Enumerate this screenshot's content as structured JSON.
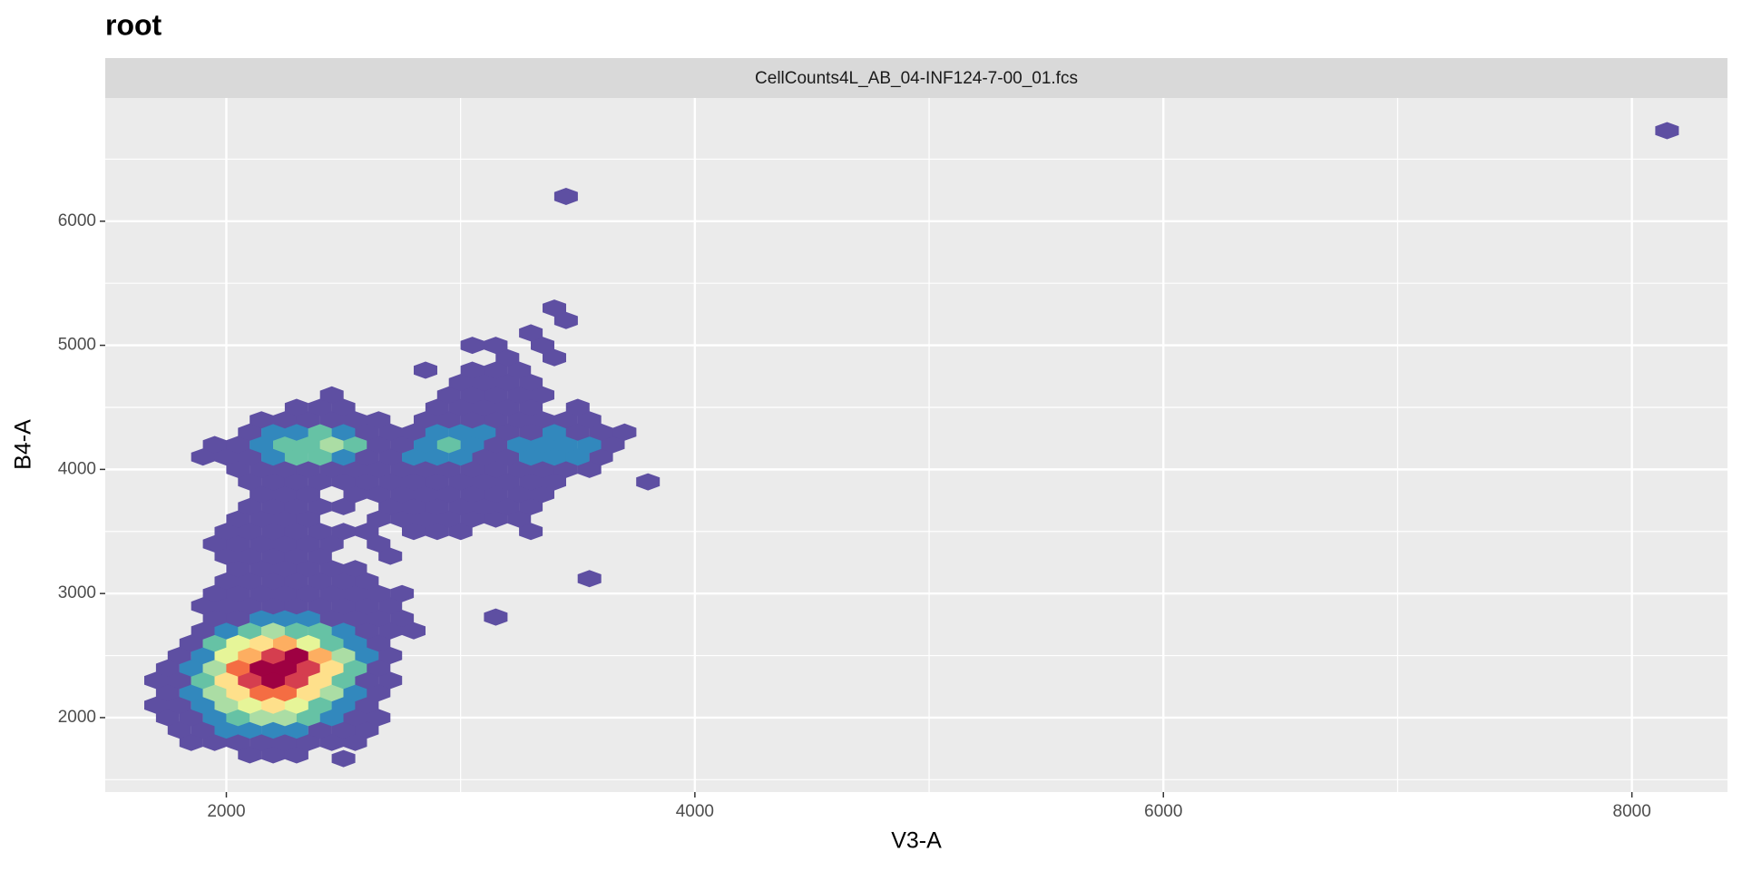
{
  "chart_data": {
    "type": "hexbin",
    "title": "root",
    "facet_label": "CellCounts4L_AB_04-INF124-7-00_01.fcs",
    "xlabel": "V3-A",
    "ylabel": "B4-A",
    "xlim": [
      1483,
      8408
    ],
    "ylim": [
      1400,
      6993
    ],
    "xticks": [
      2000,
      4000,
      6000,
      8000
    ],
    "yticks": [
      2000,
      3000,
      4000,
      5000,
      6000
    ],
    "xminor": [
      3000,
      5000,
      7000
    ],
    "yminor": [
      1500,
      2500,
      3500,
      4500,
      5500,
      6500
    ],
    "grid": true,
    "panel_color": "#ebebeb",
    "strip_color": "#d9d9d9",
    "palette": [
      "#5e4fa2",
      "#3288bd",
      "#66c2a5",
      "#abdda4",
      "#e6f598",
      "#fee08b",
      "#fdae61",
      "#f46d43",
      "#d53e4f",
      "#9e0142"
    ],
    "x": [
      2100,
      2200,
      2300,
      1850,
      1950,
      2050,
      2150,
      2250,
      2350,
      2450,
      2550,
      1800,
      1900,
      2000,
      2100,
      2200,
      2300,
      2400,
      2500,
      2600,
      1750,
      1850,
      1950,
      2050,
      2150,
      2250,
      2350,
      2450,
      2550,
      2650,
      1700,
      1800,
      1900,
      2000,
      2100,
      2200,
      2300,
      2400,
      2500,
      2600,
      1750,
      1850,
      1950,
      2050,
      2150,
      2250,
      2350,
      2450,
      2550,
      2650,
      1700,
      1800,
      1900,
      2000,
      2100,
      2200,
      2300,
      2400,
      2500,
      2600,
      2700,
      1750,
      1850,
      1950,
      2050,
      2150,
      2250,
      2350,
      2450,
      2550,
      2650,
      1800,
      1900,
      2000,
      2100,
      2200,
      2300,
      2400,
      2500,
      2600,
      2700,
      1850,
      1950,
      2050,
      2150,
      2250,
      2350,
      2450,
      2550,
      2650,
      1900,
      2000,
      2100,
      2200,
      2300,
      2400,
      2500,
      2600,
      2700,
      2800,
      1950,
      2050,
      2150,
      2250,
      2350,
      2450,
      2550,
      2650,
      2750,
      1900,
      2000,
      2100,
      2200,
      2300,
      2400,
      2500,
      2600,
      2700,
      1950,
      2050,
      2150,
      2250,
      2350,
      2450,
      2550,
      2650,
      2750,
      2000,
      2100,
      2200,
      2300,
      2400,
      2500,
      2600,
      2050,
      2150,
      2250,
      2350,
      2450,
      2550,
      2000,
      2100,
      2200,
      2300,
      2400,
      2700,
      1950,
      2050,
      2150,
      2250,
      2350,
      2450,
      2650,
      2000,
      2100,
      2200,
      2300,
      2400,
      2500,
      2600,
      2800,
      2900,
      3000,
      3300,
      2050,
      2150,
      2250,
      2350,
      2650,
      2750,
      2850,
      2950,
      3050,
      3150,
      3250,
      2100,
      2200,
      2300,
      2400,
      2500,
      2700,
      2800,
      2900,
      3000,
      3100,
      3200,
      3300,
      2150,
      2250,
      2350,
      2550,
      2650,
      2750,
      2850,
      2950,
      3050,
      3150,
      3250,
      3350,
      2100,
      2200,
      2300,
      2400,
      2500,
      2600,
      2700,
      2800,
      2900,
      3000,
      3100,
      3200,
      3300,
      3400,
      3800,
      2050,
      2150,
      2250,
      2350,
      2450,
      2550,
      2650,
      2750,
      2850,
      2950,
      3050,
      3150,
      3250,
      3350,
      3450,
      3550,
      1900,
      2000,
      2100,
      2200,
      2300,
      2400,
      2500,
      2600,
      2700,
      2800,
      2900,
      3000,
      3100,
      3200,
      3300,
      3400,
      3500,
      3600,
      1950,
      2050,
      2150,
      2250,
      2350,
      2450,
      2550,
      2650,
      2750,
      2850,
      2950,
      3050,
      3150,
      3250,
      3350,
      3450,
      3550,
      3650,
      2100,
      2200,
      2300,
      2400,
      2500,
      2600,
      2700,
      2800,
      2900,
      3000,
      3100,
      3200,
      3300,
      3400,
      3500,
      3600,
      3700,
      2150,
      2250,
      2350,
      2450,
      2550,
      2650,
      2850,
      2950,
      3050,
      3150,
      3250,
      3350,
      3450,
      3550,
      2300,
      2400,
      2500,
      2900,
      3000,
      3100,
      3200,
      3300,
      3500,
      2450,
      2950,
      3050,
      3150,
      3250,
      3350,
      3000,
      3100,
      3200,
      3300,
      2850,
      3050,
      3150,
      3250,
      3200,
      3400,
      3050,
      3150,
      3350,
      3300,
      3450,
      3400,
      3450,
      8150,
      3550,
      3150,
      2500
    ],
    "y": [
      1700,
      1700,
      1700,
      1800,
      1800,
      1800,
      1800,
      1800,
      1800,
      1800,
      1800,
      1900,
      1900,
      1900,
      1900,
      1900,
      1900,
      1900,
      1900,
      1900,
      2000,
      2000,
      2000,
      2000,
      2000,
      2000,
      2000,
      2000,
      2000,
      2000,
      2100,
      2100,
      2100,
      2100,
      2100,
      2100,
      2100,
      2100,
      2100,
      2100,
      2200,
      2200,
      2200,
      2200,
      2200,
      2200,
      2200,
      2200,
      2200,
      2200,
      2300,
      2300,
      2300,
      2300,
      2300,
      2300,
      2300,
      2300,
      2300,
      2300,
      2300,
      2400,
      2400,
      2400,
      2400,
      2400,
      2400,
      2400,
      2400,
      2400,
      2400,
      2500,
      2500,
      2500,
      2500,
      2500,
      2500,
      2500,
      2500,
      2500,
      2500,
      2600,
      2600,
      2600,
      2600,
      2600,
      2600,
      2600,
      2600,
      2600,
      2700,
      2700,
      2700,
      2700,
      2700,
      2700,
      2700,
      2700,
      2700,
      2700,
      2800,
      2800,
      2800,
      2800,
      2800,
      2800,
      2800,
      2800,
      2800,
      2900,
      2900,
      2900,
      2900,
      2900,
      2900,
      2900,
      2900,
      2900,
      3000,
      3000,
      3000,
      3000,
      3000,
      3000,
      3000,
      3000,
      3000,
      3100,
      3100,
      3100,
      3100,
      3100,
      3100,
      3100,
      3200,
      3200,
      3200,
      3200,
      3200,
      3200,
      3300,
      3300,
      3300,
      3300,
      3300,
      3300,
      3400,
      3400,
      3400,
      3400,
      3400,
      3400,
      3400,
      3500,
      3500,
      3500,
      3500,
      3500,
      3500,
      3500,
      3500,
      3500,
      3500,
      3500,
      3600,
      3600,
      3600,
      3600,
      3600,
      3600,
      3600,
      3600,
      3600,
      3600,
      3600,
      3700,
      3700,
      3700,
      3700,
      3700,
      3700,
      3700,
      3700,
      3700,
      3700,
      3700,
      3700,
      3800,
      3800,
      3800,
      3800,
      3800,
      3800,
      3800,
      3800,
      3800,
      3800,
      3800,
      3800,
      3900,
      3900,
      3900,
      3900,
      3900,
      3900,
      3900,
      3900,
      3900,
      3900,
      3900,
      3900,
      3900,
      3900,
      3900,
      4000,
      4000,
      4000,
      4000,
      4000,
      4000,
      4000,
      4000,
      4000,
      4000,
      4000,
      4000,
      4000,
      4000,
      4000,
      4000,
      4100,
      4100,
      4100,
      4100,
      4100,
      4100,
      4100,
      4100,
      4100,
      4100,
      4100,
      4100,
      4100,
      4100,
      4100,
      4100,
      4100,
      4100,
      4200,
      4200,
      4200,
      4200,
      4200,
      4200,
      4200,
      4200,
      4200,
      4200,
      4200,
      4200,
      4200,
      4200,
      4200,
      4200,
      4200,
      4200,
      4300,
      4300,
      4300,
      4300,
      4300,
      4300,
      4300,
      4300,
      4300,
      4300,
      4300,
      4300,
      4300,
      4300,
      4300,
      4300,
      4300,
      4400,
      4400,
      4400,
      4400,
      4400,
      4400,
      4400,
      4400,
      4400,
      4400,
      4400,
      4400,
      4400,
      4400,
      4500,
      4500,
      4500,
      4500,
      4500,
      4500,
      4500,
      4500,
      4500,
      4600,
      4600,
      4600,
      4600,
      4600,
      4600,
      4700,
      4700,
      4700,
      4700,
      4800,
      4800,
      4800,
      4800,
      4900,
      4900,
      5000,
      5000,
      5000,
      5100,
      5200,
      5300,
      6200,
      6730,
      3120,
      2810,
      1670
    ],
    "values": [
      1,
      2,
      1,
      1,
      3,
      5,
      6,
      5,
      3,
      2,
      1,
      2,
      6,
      12,
      16,
      16,
      12,
      7,
      3,
      1,
      1,
      6,
      15,
      28,
      35,
      32,
      24,
      12,
      4,
      1,
      1,
      5,
      16,
      35,
      50,
      55,
      45,
      28,
      12,
      3,
      4,
      12,
      32,
      58,
      75,
      72,
      55,
      32,
      12,
      3,
      2,
      10,
      25,
      55,
      82,
      92,
      85,
      55,
      25,
      8,
      2,
      5,
      16,
      40,
      72,
      95,
      100,
      88,
      55,
      22,
      6,
      8,
      20,
      45,
      70,
      85,
      96,
      70,
      38,
      14,
      3,
      10,
      22,
      42,
      58,
      62,
      50,
      30,
      12,
      4,
      8,
      16,
      26,
      32,
      30,
      22,
      12,
      5,
      2,
      1,
      6,
      10,
      14,
      15,
      12,
      8,
      4,
      2,
      1,
      2,
      5,
      7,
      8,
      7,
      5,
      3,
      2,
      1,
      2,
      4,
      5,
      5,
      4,
      3,
      2,
      1,
      1,
      3,
      4,
      4,
      3,
      3,
      2,
      1,
      3,
      4,
      3,
      3,
      2,
      1,
      2,
      3,
      4,
      3,
      2,
      1,
      1,
      3,
      4,
      4,
      3,
      2,
      1,
      2,
      3,
      3,
      4,
      3,
      2,
      2,
      2,
      1,
      1,
      1,
      2,
      3,
      3,
      2,
      2,
      3,
      2,
      3,
      2,
      2,
      1,
      2,
      3,
      4,
      3,
      2,
      2,
      3,
      4,
      4,
      3,
      3,
      2,
      3,
      3,
      2,
      2,
      3,
      4,
      5,
      5,
      6,
      4,
      3,
      2,
      2,
      3,
      4,
      3,
      3,
      4,
      5,
      5,
      6,
      6,
      5,
      5,
      4,
      2,
      1,
      2,
      5,
      8,
      10,
      8,
      5,
      5,
      6,
      8,
      9,
      8,
      7,
      8,
      8,
      6,
      3,
      1,
      3,
      8,
      16,
      22,
      26,
      20,
      10,
      8,
      12,
      16,
      14,
      10,
      9,
      14,
      18,
      14,
      5,
      1,
      4,
      12,
      22,
      30,
      32,
      22,
      10,
      9,
      16,
      22,
      18,
      10,
      12,
      18,
      20,
      14,
      4,
      4,
      12,
      20,
      22,
      16,
      8,
      6,
      10,
      16,
      18,
      12,
      8,
      10,
      12,
      10,
      5,
      2,
      3,
      6,
      8,
      7,
      4,
      2,
      3,
      7,
      8,
      6,
      4,
      4,
      3,
      2,
      3,
      4,
      2,
      3,
      4,
      4,
      3,
      2,
      1,
      1,
      2,
      3,
      3,
      2,
      1,
      1,
      2,
      2,
      1,
      1,
      2,
      1,
      1,
      1,
      1,
      1,
      1,
      1,
      1,
      1,
      1,
      1,
      1,
      1,
      1,
      1
    ]
  }
}
